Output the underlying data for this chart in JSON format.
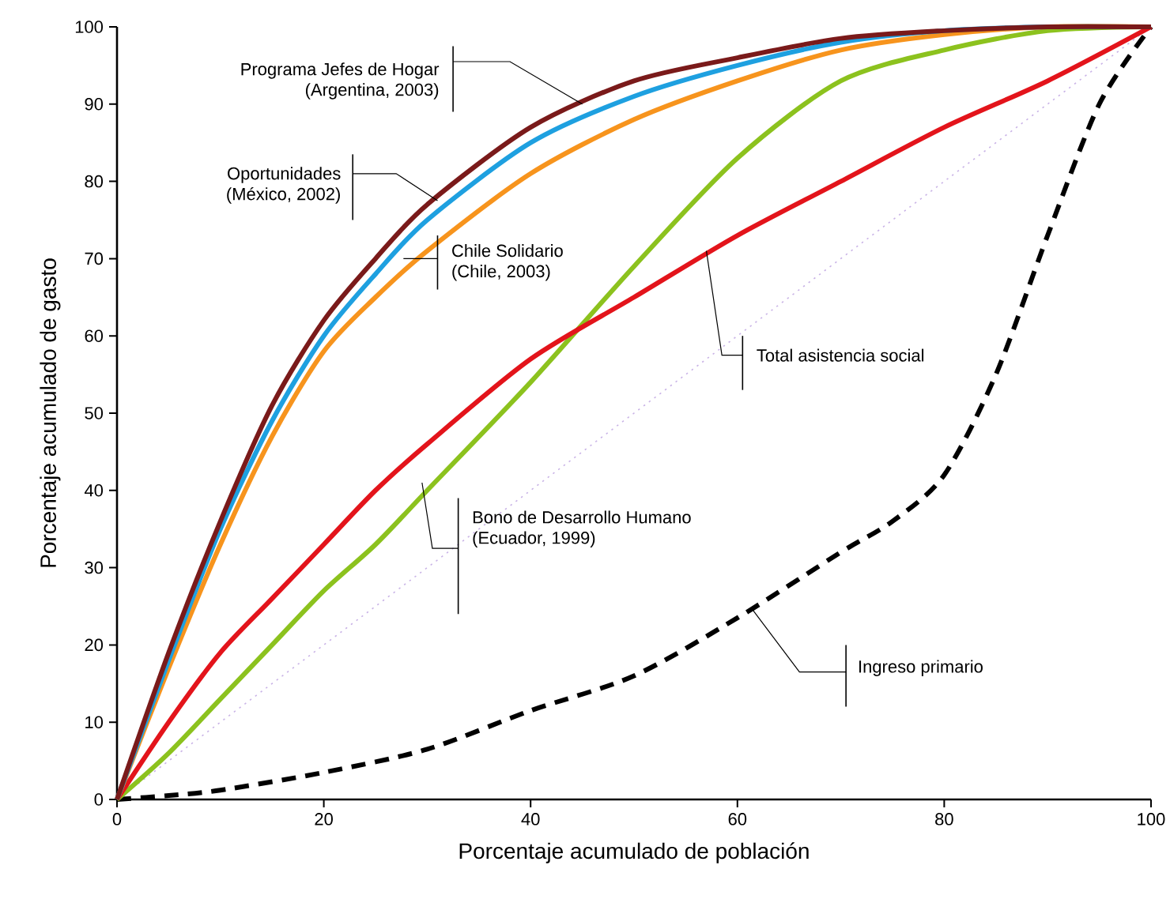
{
  "chart_data": {
    "type": "line",
    "xlabel": "Porcentaje acumulado de población",
    "ylabel": "Porcentaje acumulado de gasto",
    "xlim": [
      0,
      100
    ],
    "ylim": [
      0,
      100
    ],
    "xticks": [
      0,
      20,
      40,
      60,
      80,
      100
    ],
    "yticks": [
      0,
      10,
      20,
      30,
      40,
      50,
      60,
      70,
      80,
      90,
      100
    ],
    "grid": false,
    "marker": "none",
    "series": [
      {
        "color": "#c9b3e6",
        "line_style": "dotted",
        "x": [
          0,
          100
        ],
        "values": [
          0,
          100
        ]
      },
      {
        "color": "#000000",
        "line_style": "dashed",
        "x": [
          0,
          5,
          10,
          20,
          30,
          40,
          50,
          60,
          70,
          75,
          80,
          85,
          90,
          95,
          100
        ],
        "values": [
          0,
          0.5,
          1.2,
          3.5,
          6.5,
          11.5,
          16,
          23.5,
          32,
          36,
          42,
          55,
          73,
          90,
          100
        ]
      },
      {
        "color": "#8cc21e",
        "line_style": "solid",
        "x": [
          0,
          5,
          10,
          15,
          20,
          25,
          30,
          40,
          50,
          60,
          70,
          80,
          90,
          100
        ],
        "values": [
          0,
          6,
          13,
          20,
          27,
          33,
          40,
          54,
          69,
          83,
          93,
          97,
          99.5,
          100
        ]
      },
      {
        "color": "#e3141b",
        "line_style": "solid",
        "x": [
          0,
          5,
          10,
          15,
          20,
          25,
          30,
          40,
          50,
          60,
          70,
          80,
          90,
          100
        ],
        "values": [
          0,
          10,
          19,
          26,
          33,
          40,
          46,
          57,
          65,
          73,
          80,
          87,
          93,
          100
        ]
      },
      {
        "color": "#f7941d",
        "line_style": "solid",
        "x": [
          0,
          5,
          10,
          15,
          20,
          25,
          30,
          40,
          50,
          60,
          70,
          80,
          90,
          100
        ],
        "values": [
          0,
          17,
          33,
          47,
          58,
          65,
          71,
          81,
          88,
          93,
          97,
          99,
          100,
          100
        ]
      },
      {
        "color": "#1ea0e0",
        "line_style": "solid",
        "x": [
          0,
          5,
          10,
          15,
          20,
          25,
          30,
          40,
          50,
          60,
          70,
          80,
          90,
          100
        ],
        "values": [
          0,
          18,
          35,
          49,
          60,
          68,
          75,
          85,
          91,
          95,
          98,
          99.5,
          100,
          100
        ]
      },
      {
        "color": "#7a1a1a",
        "line_style": "solid",
        "x": [
          0,
          5,
          10,
          15,
          20,
          25,
          30,
          40,
          50,
          60,
          70,
          80,
          90,
          100
        ],
        "values": [
          0,
          19,
          36,
          51,
          62,
          70,
          77,
          87,
          93,
          96,
          98.5,
          99.5,
          100,
          100
        ]
      }
    ],
    "annotations": [
      {
        "text": "Programa Jefes de Hogar (Argentina, 2003)",
        "x": 45,
        "y": 90
      },
      {
        "text": "Oportunidades (México, 2002)",
        "x": 31,
        "y": 77.5
      },
      {
        "text": "Chile Solidario (Chile, 2003)",
        "x": 27.7,
        "y": 70
      },
      {
        "text": "Total asistencia social",
        "x": 57,
        "y": 71
      },
      {
        "text": "Bono de Desarrollo Humano (Ecuador, 1999)",
        "x": 29.5,
        "y": 41
      },
      {
        "text": "Ingreso primario",
        "x": 61.5,
        "y": 24.5
      }
    ]
  }
}
